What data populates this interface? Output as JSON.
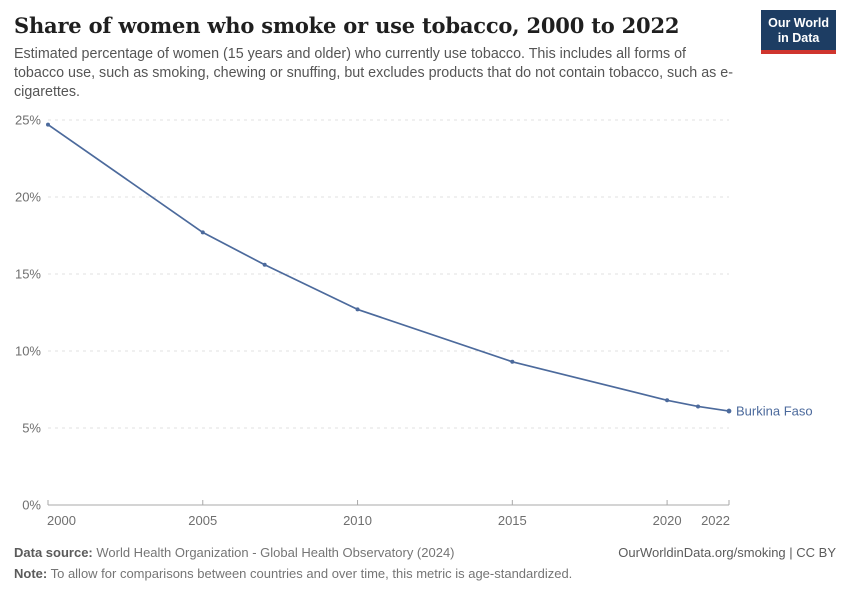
{
  "header": {
    "title": "Share of women who smoke or use tobacco, 2000 to 2022",
    "subtitle": "Estimated percentage of women (15 years and older) who currently use tobacco. This includes all forms of tobacco use, such as smoking, chewing or snuffing, but excludes products that do not contain tobacco, such as e-cigarettes.",
    "logo": {
      "line1": "Our World",
      "line2": "in Data",
      "bg_color": "#1d3d63",
      "stripe_color": "#cf352e"
    }
  },
  "chart_data": {
    "type": "line",
    "title": "Share of women who smoke or use tobacco, 2000 to 2022",
    "xlabel": "",
    "ylabel": "",
    "xlim": [
      2000,
      2022
    ],
    "ylim": [
      0,
      25
    ],
    "grid": "horizontal-dashed",
    "legend_position": "end-of-line-label",
    "x_ticks": [
      {
        "value": 2000,
        "label": "2000"
      },
      {
        "value": 2005,
        "label": "2005"
      },
      {
        "value": 2010,
        "label": "2010"
      },
      {
        "value": 2015,
        "label": "2015"
      },
      {
        "value": 2020,
        "label": "2020"
      },
      {
        "value": 2022,
        "label": "2022"
      }
    ],
    "y_ticks": [
      {
        "value": 0,
        "label": "0%"
      },
      {
        "value": 5,
        "label": "5%"
      },
      {
        "value": 10,
        "label": "10%"
      },
      {
        "value": 15,
        "label": "15%"
      },
      {
        "value": 20,
        "label": "20%"
      },
      {
        "value": 25,
        "label": "25%"
      }
    ],
    "series": [
      {
        "name": "Burkina Faso",
        "color": "#4c6a9c",
        "points": [
          {
            "x": 2000,
            "y": 24.7
          },
          {
            "x": 2005,
            "y": 17.7
          },
          {
            "x": 2007,
            "y": 15.6
          },
          {
            "x": 2010,
            "y": 12.7
          },
          {
            "x": 2015,
            "y": 9.3
          },
          {
            "x": 2020,
            "y": 6.8
          },
          {
            "x": 2021,
            "y": 6.4
          },
          {
            "x": 2022,
            "y": 6.1
          }
        ]
      }
    ]
  },
  "footer": {
    "datasource_label": "Data source:",
    "datasource_value": " World Health Organization - Global Health Observatory (2024)",
    "note_label": "Note:",
    "note_value": " To allow for comparisons between countries and over time, this metric is age-standardized.",
    "right_text": "OurWorldinData.org/smoking | CC BY"
  }
}
